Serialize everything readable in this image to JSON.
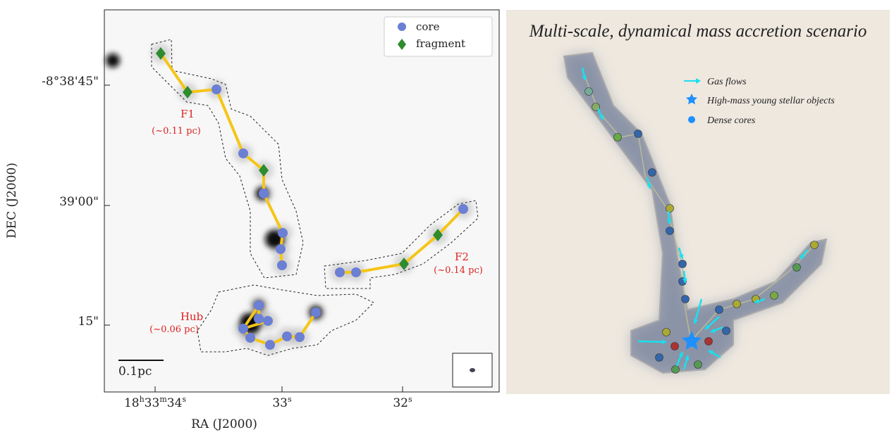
{
  "left_panel": {
    "legend": {
      "core": "core",
      "fragment": "fragment"
    },
    "y_axis": {
      "label": "DEC (J2000)",
      "ticks": [
        "-8°38'45\"",
        "39'00\"",
        "15\""
      ]
    },
    "x_axis": {
      "label": "RA (J2000)",
      "ticks": [
        [
          "18",
          "h",
          "33",
          "m",
          "34",
          "s"
        ],
        [
          "33",
          "s"
        ],
        [
          "32",
          "s"
        ]
      ]
    },
    "annotations": {
      "f1": "F1",
      "f1_size": "(~0.11 pc)",
      "f2": "F2",
      "f2_size": "(~0.14 pc)",
      "hub": "Hub",
      "hub_size": "(~0.06 pc)"
    },
    "scale_bar": "0.1pc"
  },
  "right_panel": {
    "title": "Multi-scale, dynamical mass accretion scenario",
    "legend": {
      "gas_flows": "Gas flows",
      "hmyso": "High-mass young stellar objects",
      "dense_cores": "Dense cores"
    }
  }
}
